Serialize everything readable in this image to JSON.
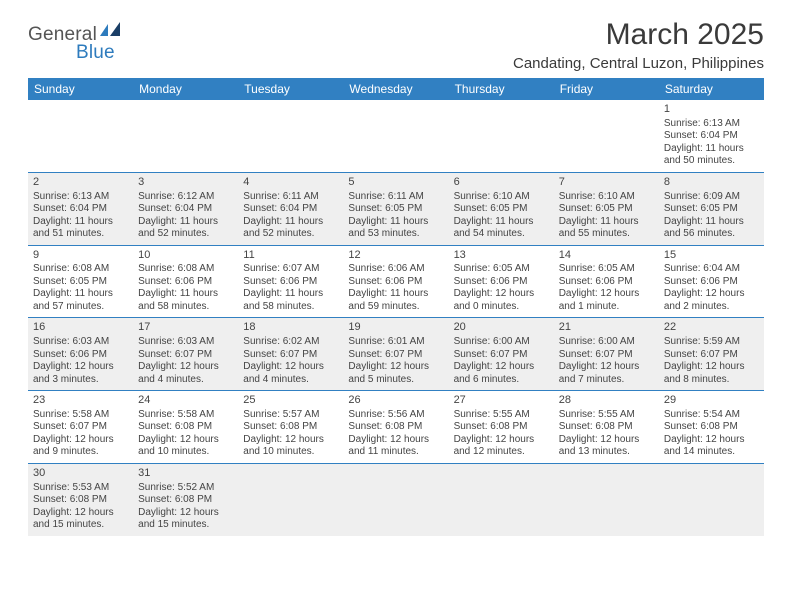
{
  "logo": {
    "part1": "General",
    "part2": "Blue"
  },
  "title": "March 2025",
  "location": "Candating, Central Luzon, Philippines",
  "colors": {
    "header_bg": "#3180c2",
    "header_text": "#ffffff",
    "grey_row": "#efefef",
    "border": "#3180c2",
    "text": "#444444",
    "logo_grey": "#555555",
    "logo_blue": "#2d7bbd"
  },
  "dayHeaders": [
    "Sunday",
    "Monday",
    "Tuesday",
    "Wednesday",
    "Thursday",
    "Friday",
    "Saturday"
  ],
  "weeks": [
    {
      "grey": false,
      "days": [
        null,
        null,
        null,
        null,
        null,
        null,
        {
          "n": "1",
          "sr": "Sunrise: 6:13 AM",
          "ss": "Sunset: 6:04 PM",
          "d1": "Daylight: 11 hours",
          "d2": "and 50 minutes."
        }
      ]
    },
    {
      "grey": true,
      "days": [
        {
          "n": "2",
          "sr": "Sunrise: 6:13 AM",
          "ss": "Sunset: 6:04 PM",
          "d1": "Daylight: 11 hours",
          "d2": "and 51 minutes."
        },
        {
          "n": "3",
          "sr": "Sunrise: 6:12 AM",
          "ss": "Sunset: 6:04 PM",
          "d1": "Daylight: 11 hours",
          "d2": "and 52 minutes."
        },
        {
          "n": "4",
          "sr": "Sunrise: 6:11 AM",
          "ss": "Sunset: 6:04 PM",
          "d1": "Daylight: 11 hours",
          "d2": "and 52 minutes."
        },
        {
          "n": "5",
          "sr": "Sunrise: 6:11 AM",
          "ss": "Sunset: 6:05 PM",
          "d1": "Daylight: 11 hours",
          "d2": "and 53 minutes."
        },
        {
          "n": "6",
          "sr": "Sunrise: 6:10 AM",
          "ss": "Sunset: 6:05 PM",
          "d1": "Daylight: 11 hours",
          "d2": "and 54 minutes."
        },
        {
          "n": "7",
          "sr": "Sunrise: 6:10 AM",
          "ss": "Sunset: 6:05 PM",
          "d1": "Daylight: 11 hours",
          "d2": "and 55 minutes."
        },
        {
          "n": "8",
          "sr": "Sunrise: 6:09 AM",
          "ss": "Sunset: 6:05 PM",
          "d1": "Daylight: 11 hours",
          "d2": "and 56 minutes."
        }
      ]
    },
    {
      "grey": false,
      "days": [
        {
          "n": "9",
          "sr": "Sunrise: 6:08 AM",
          "ss": "Sunset: 6:05 PM",
          "d1": "Daylight: 11 hours",
          "d2": "and 57 minutes."
        },
        {
          "n": "10",
          "sr": "Sunrise: 6:08 AM",
          "ss": "Sunset: 6:06 PM",
          "d1": "Daylight: 11 hours",
          "d2": "and 58 minutes."
        },
        {
          "n": "11",
          "sr": "Sunrise: 6:07 AM",
          "ss": "Sunset: 6:06 PM",
          "d1": "Daylight: 11 hours",
          "d2": "and 58 minutes."
        },
        {
          "n": "12",
          "sr": "Sunrise: 6:06 AM",
          "ss": "Sunset: 6:06 PM",
          "d1": "Daylight: 11 hours",
          "d2": "and 59 minutes."
        },
        {
          "n": "13",
          "sr": "Sunrise: 6:05 AM",
          "ss": "Sunset: 6:06 PM",
          "d1": "Daylight: 12 hours",
          "d2": "and 0 minutes."
        },
        {
          "n": "14",
          "sr": "Sunrise: 6:05 AM",
          "ss": "Sunset: 6:06 PM",
          "d1": "Daylight: 12 hours",
          "d2": "and 1 minute."
        },
        {
          "n": "15",
          "sr": "Sunrise: 6:04 AM",
          "ss": "Sunset: 6:06 PM",
          "d1": "Daylight: 12 hours",
          "d2": "and 2 minutes."
        }
      ]
    },
    {
      "grey": true,
      "days": [
        {
          "n": "16",
          "sr": "Sunrise: 6:03 AM",
          "ss": "Sunset: 6:06 PM",
          "d1": "Daylight: 12 hours",
          "d2": "and 3 minutes."
        },
        {
          "n": "17",
          "sr": "Sunrise: 6:03 AM",
          "ss": "Sunset: 6:07 PM",
          "d1": "Daylight: 12 hours",
          "d2": "and 4 minutes."
        },
        {
          "n": "18",
          "sr": "Sunrise: 6:02 AM",
          "ss": "Sunset: 6:07 PM",
          "d1": "Daylight: 12 hours",
          "d2": "and 4 minutes."
        },
        {
          "n": "19",
          "sr": "Sunrise: 6:01 AM",
          "ss": "Sunset: 6:07 PM",
          "d1": "Daylight: 12 hours",
          "d2": "and 5 minutes."
        },
        {
          "n": "20",
          "sr": "Sunrise: 6:00 AM",
          "ss": "Sunset: 6:07 PM",
          "d1": "Daylight: 12 hours",
          "d2": "and 6 minutes."
        },
        {
          "n": "21",
          "sr": "Sunrise: 6:00 AM",
          "ss": "Sunset: 6:07 PM",
          "d1": "Daylight: 12 hours",
          "d2": "and 7 minutes."
        },
        {
          "n": "22",
          "sr": "Sunrise: 5:59 AM",
          "ss": "Sunset: 6:07 PM",
          "d1": "Daylight: 12 hours",
          "d2": "and 8 minutes."
        }
      ]
    },
    {
      "grey": false,
      "days": [
        {
          "n": "23",
          "sr": "Sunrise: 5:58 AM",
          "ss": "Sunset: 6:07 PM",
          "d1": "Daylight: 12 hours",
          "d2": "and 9 minutes."
        },
        {
          "n": "24",
          "sr": "Sunrise: 5:58 AM",
          "ss": "Sunset: 6:08 PM",
          "d1": "Daylight: 12 hours",
          "d2": "and 10 minutes."
        },
        {
          "n": "25",
          "sr": "Sunrise: 5:57 AM",
          "ss": "Sunset: 6:08 PM",
          "d1": "Daylight: 12 hours",
          "d2": "and 10 minutes."
        },
        {
          "n": "26",
          "sr": "Sunrise: 5:56 AM",
          "ss": "Sunset: 6:08 PM",
          "d1": "Daylight: 12 hours",
          "d2": "and 11 minutes."
        },
        {
          "n": "27",
          "sr": "Sunrise: 5:55 AM",
          "ss": "Sunset: 6:08 PM",
          "d1": "Daylight: 12 hours",
          "d2": "and 12 minutes."
        },
        {
          "n": "28",
          "sr": "Sunrise: 5:55 AM",
          "ss": "Sunset: 6:08 PM",
          "d1": "Daylight: 12 hours",
          "d2": "and 13 minutes."
        },
        {
          "n": "29",
          "sr": "Sunrise: 5:54 AM",
          "ss": "Sunset: 6:08 PM",
          "d1": "Daylight: 12 hours",
          "d2": "and 14 minutes."
        }
      ]
    },
    {
      "grey": true,
      "days": [
        {
          "n": "30",
          "sr": "Sunrise: 5:53 AM",
          "ss": "Sunset: 6:08 PM",
          "d1": "Daylight: 12 hours",
          "d2": "and 15 minutes."
        },
        {
          "n": "31",
          "sr": "Sunrise: 5:52 AM",
          "ss": "Sunset: 6:08 PM",
          "d1": "Daylight: 12 hours",
          "d2": "and 15 minutes."
        },
        null,
        null,
        null,
        null,
        null
      ]
    }
  ]
}
